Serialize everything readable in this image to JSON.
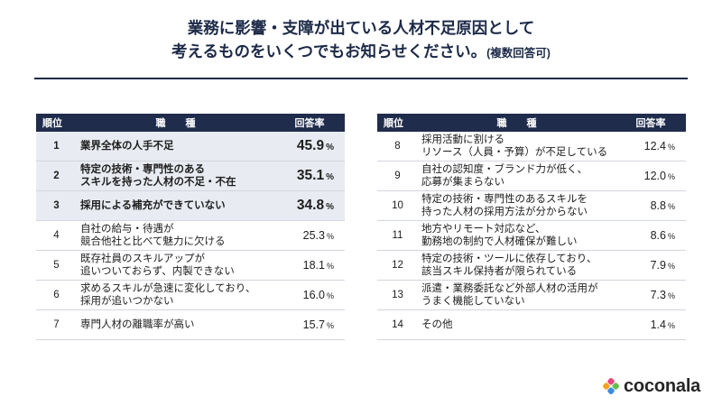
{
  "title": {
    "line1": "業務に影響・支障が出ている人材不足原因として",
    "line2": "考えるものをいくつでもお知らせください。",
    "note": "(複数回答可)"
  },
  "colors": {
    "title": "#1c2a48",
    "header_bg": "#1f2c4c",
    "header_text": "#ffffff",
    "highlight_bg": "#e8ebf1",
    "divider": "#1c2a48",
    "row_border": "#d2d6de",
    "text": "#1e1e1e"
  },
  "chart_data": {
    "type": "table",
    "columns": [
      "順位",
      "職　　種",
      "回答率"
    ],
    "unit": "%",
    "rows": [
      {
        "rank": 1,
        "lines": [
          "業界全体の人手不足"
        ],
        "value": 45.9,
        "highlight": true
      },
      {
        "rank": 2,
        "lines": [
          "特定の技術・専門性のある",
          "スキルを持った人材の不足・不在"
        ],
        "value": 35.1,
        "highlight": true
      },
      {
        "rank": 3,
        "lines": [
          "採用による補充ができていない"
        ],
        "value": 34.8,
        "highlight": true
      },
      {
        "rank": 4,
        "lines": [
          "自社の給与・待遇が",
          "競合他社と比べて魅力に欠ける"
        ],
        "value": 25.3,
        "highlight": false
      },
      {
        "rank": 5,
        "lines": [
          "既存社員のスキルアップが",
          "追いついておらず、内製できない"
        ],
        "value": 18.1,
        "highlight": false
      },
      {
        "rank": 6,
        "lines": [
          "求めるスキルが急速に変化しており、",
          "採用が追いつかない"
        ],
        "value": 16.0,
        "highlight": false
      },
      {
        "rank": 7,
        "lines": [
          "専門人材の離職率が高い"
        ],
        "value": 15.7,
        "highlight": false
      },
      {
        "rank": 8,
        "lines": [
          "採用活動に割ける",
          "リソース（人員・予算）が不足している"
        ],
        "value": 12.4,
        "highlight": false
      },
      {
        "rank": 9,
        "lines": [
          "自社の認知度・ブランド力が低く、",
          "応募が集まらない"
        ],
        "value": 12.0,
        "highlight": false
      },
      {
        "rank": 10,
        "lines": [
          "特定の技術・専門性のあるスキルを",
          "持った人材の採用方法が分からない"
        ],
        "value": 8.8,
        "highlight": false
      },
      {
        "rank": 11,
        "lines": [
          "地方やリモート対応など、",
          "勤務地の制約で人材確保が難しい"
        ],
        "value": 8.6,
        "highlight": false
      },
      {
        "rank": 12,
        "lines": [
          "特定の技術・ツールに依存しており、",
          "該当スキル保持者が限られている"
        ],
        "value": 7.9,
        "highlight": false
      },
      {
        "rank": 13,
        "lines": [
          "派遣・業務委託など外部人材の活用が",
          "うまく機能していない"
        ],
        "value": 7.3,
        "highlight": false
      },
      {
        "rank": 14,
        "lines": [
          "その他"
        ],
        "value": 1.4,
        "highlight": false
      }
    ]
  },
  "logo": {
    "text": "coconala",
    "colors": [
      "#e8467c",
      "#62bf4f",
      "#f5a21b",
      "#3b8ede"
    ]
  }
}
